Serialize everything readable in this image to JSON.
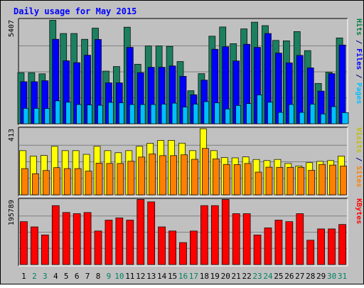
{
  "chart_data": {
    "type": "bar",
    "title": "Daily usage for May 2015",
    "categories": [
      "1",
      "2",
      "3",
      "4",
      "5",
      "6",
      "7",
      "8",
      "9",
      "10",
      "11",
      "12",
      "13",
      "14",
      "15",
      "16",
      "17",
      "18",
      "19",
      "20",
      "21",
      "22",
      "23",
      "24",
      "25",
      "26",
      "27",
      "28",
      "29",
      "30",
      "31"
    ],
    "weekend_days": [
      2,
      3,
      9,
      10,
      16,
      17,
      23,
      24,
      30,
      31
    ],
    "panels": [
      {
        "id": "hits",
        "max_label": "5407",
        "ymax": 5407,
        "right_labels": [
          {
            "text": "Hits",
            "color": "#008040"
          },
          {
            "text": " / ",
            "color": "#000080"
          },
          {
            "text": "Files",
            "color": "#0000ff"
          },
          {
            "text": " / ",
            "color": "#000080"
          },
          {
            "text": "Pages",
            "color": "#00c0ff"
          }
        ],
        "series": [
          {
            "name": "Hits",
            "color": "#1c7f5f",
            "values": [
              2660,
              2660,
              2600,
              5390,
              4700,
              4700,
              4400,
              4980,
              2740,
              2980,
              5030,
              3100,
              4050,
              4050,
              4030,
              3240,
              1720,
              2610,
              4560,
              5040,
              4170,
              4940,
              5290,
              5110,
              4340,
              4320,
              4800,
              3810,
              2100,
              2680,
              4470
            ]
          },
          {
            "name": "Files",
            "color": "#0000ff",
            "values": [
              2190,
              2190,
              2240,
              4400,
              3280,
              3180,
              3570,
              4390,
              2130,
              2130,
              3980,
              2660,
              2940,
              2940,
              3010,
              2470,
              1510,
              2270,
              3880,
              4010,
              3270,
              4140,
              3980,
              4700,
              3680,
              3170,
              3560,
              2910,
              1700,
              2610,
              4100
            ]
          },
          {
            "name": "Pages",
            "color": "#00bfff",
            "values": [
              800,
              800,
              790,
              1190,
              1120,
              1000,
              980,
              960,
              1110,
              1090,
              1000,
              1000,
              1000,
              1020,
              1070,
              870,
              1020,
              1150,
              1090,
              770,
              950,
              1050,
              1500,
              1120,
              590,
              1000,
              590,
              1020,
              510,
              890,
              580
            ]
          }
        ]
      },
      {
        "id": "visits",
        "max_label": "413",
        "ymax": 413,
        "right_labels": [
          {
            "text": "Visits",
            "color": "#c0c000"
          },
          {
            "text": " / ",
            "color": "#000080"
          },
          {
            "text": "Sites",
            "color": "#ff8000"
          }
        ],
        "series": [
          {
            "name": "Visits",
            "color": "#ffff00",
            "values": [
              276,
              242,
              246,
              303,
              276,
              276,
              253,
              303,
              276,
              263,
              276,
              303,
              322,
              340,
              340,
              323,
              276,
              413,
              276,
              233,
              231,
              237,
              221,
              214,
              221,
              196,
              180,
              201,
              209,
              214,
              242
            ]
          },
          {
            "name": "Sites",
            "color": "#ff8000",
            "values": [
              164,
              132,
              152,
              170,
              164,
              164,
              148,
              198,
              196,
              196,
              210,
              236,
              255,
              245,
              245,
              250,
              222,
              290,
              224,
              190,
              189,
              196,
              142,
              173,
              172,
              172,
              172,
              153,
              190,
              186,
              180
            ]
          }
        ]
      },
      {
        "id": "kbytes",
        "max_label": "195789",
        "ymax": 195789,
        "right_labels": [
          {
            "text": "KBytes",
            "color": "#ff0000"
          }
        ],
        "series": [
          {
            "name": "KBytes",
            "color": "#ff0000",
            "values": [
              129840,
              114000,
              89400,
              178320,
              157500,
              154000,
              157500,
              101500,
              134400,
              141120,
              134400,
              196840,
              189600,
              114000,
              101500,
              66500,
              101500,
              178320,
              178320,
              196840,
              154000,
              154000,
              89400,
              111000,
              134400,
              129840,
              154000,
              73650,
              107800,
              107800,
              121200
            ]
          }
        ]
      }
    ]
  }
}
